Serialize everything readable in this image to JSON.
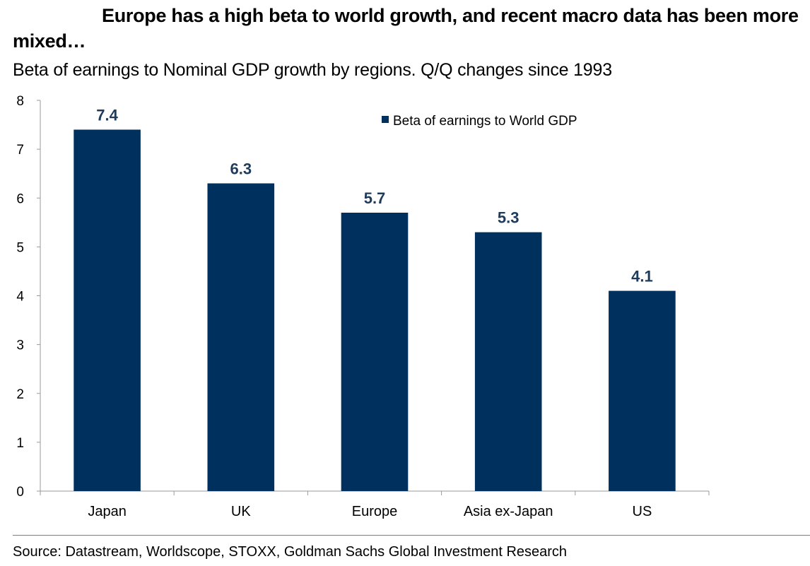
{
  "header": {
    "title": "Europe has a high beta to world growth, and recent macro data has been more mixed…",
    "subtitle": "Beta of earnings to Nominal GDP growth by regions. Q/Q changes since 1993"
  },
  "footer": {
    "source": "Source: Datastream, Worldscope, STOXX, Goldman Sachs Global Investment Research"
  },
  "chart_data": {
    "type": "bar",
    "categories": [
      "Japan",
      "UK",
      "Europe",
      "Asia ex-Japan",
      "US"
    ],
    "series": [
      {
        "name": "Beta of earnings to World GDP",
        "values": [
          7.4,
          6.3,
          5.7,
          5.3,
          4.1
        ],
        "color": "#00305e"
      }
    ],
    "data_labels": [
      "7.4",
      "6.3",
      "5.7",
      "5.3",
      "4.1"
    ],
    "yticks": [
      "0",
      "1",
      "2",
      "3",
      "4",
      "5",
      "6",
      "7",
      "8"
    ],
    "ylim": [
      0,
      8
    ],
    "xlabel": "",
    "ylabel": "",
    "grid": false,
    "legend_position": "top-right"
  }
}
